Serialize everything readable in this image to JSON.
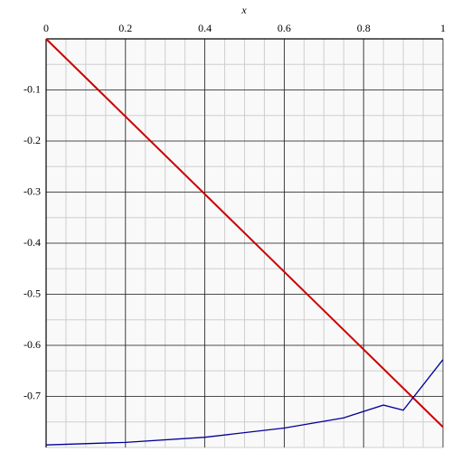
{
  "chart_data": {
    "type": "line",
    "x_label": "x",
    "x": [
      0,
      0.2,
      0.4,
      0.6,
      0.75,
      0.85,
      0.9,
      1
    ],
    "series": [
      {
        "color": "#cc0000",
        "x": [
          0,
          1
        ],
        "values": [
          0,
          -0.76
        ]
      },
      {
        "color": "#000099",
        "x": [
          0,
          0.2,
          0.4,
          0.6,
          0.75,
          0.85,
          0.9,
          1
        ],
        "values": [
          -0.795,
          -0.79,
          -0.78,
          -0.762,
          -0.742,
          -0.717,
          -0.727,
          -0.628
        ]
      }
    ],
    "xlim": [
      0,
      1
    ],
    "ylim": [
      -0.8,
      0
    ],
    "xticks": [
      0,
      0.2,
      0.4,
      0.6,
      0.8,
      1
    ],
    "yticks": [
      -0.1,
      -0.2,
      -0.3,
      -0.4,
      -0.5,
      -0.6,
      -0.7
    ],
    "grid": true
  }
}
